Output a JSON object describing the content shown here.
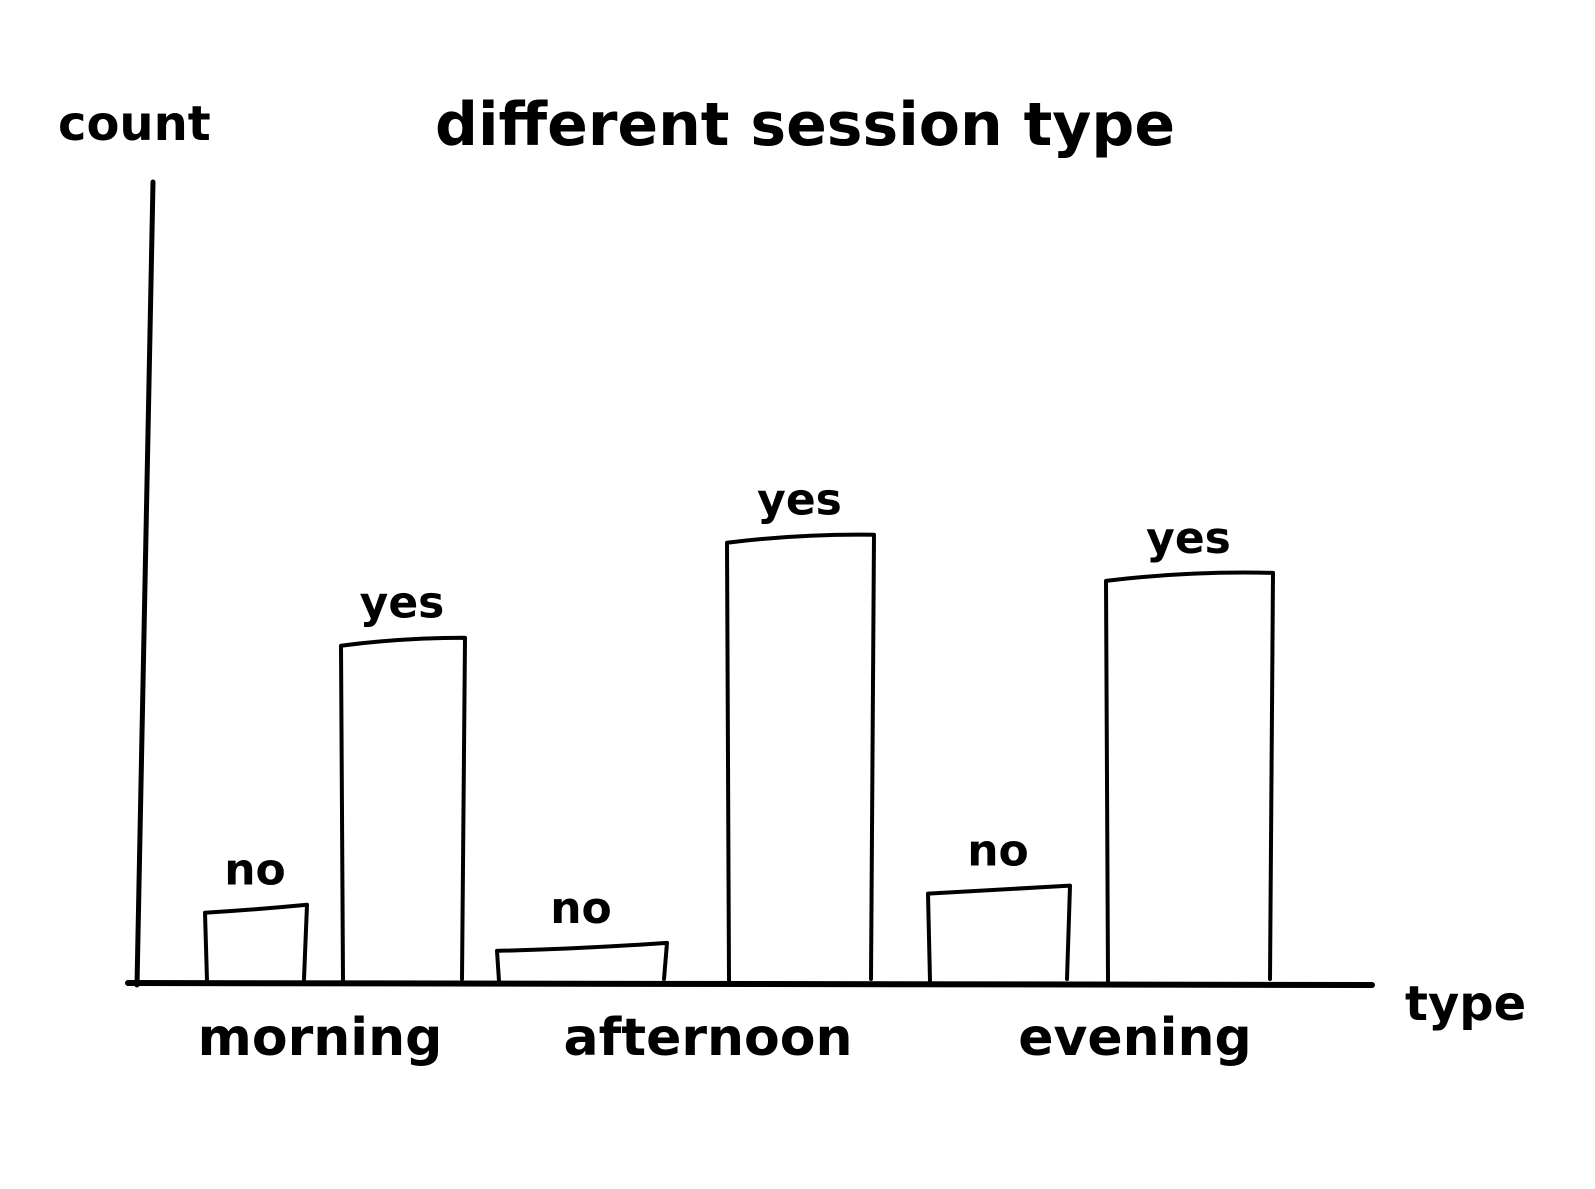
{
  "chart_data": {
    "type": "bar",
    "title": "different session type",
    "xlabel": "type",
    "ylabel": "count",
    "categories": [
      "morning",
      "afternoon",
      "evening"
    ],
    "series": [
      {
        "name": "no",
        "values": [
          2,
          1,
          2.5
        ]
      },
      {
        "name": "yes",
        "values": [
          9,
          11.7,
          10.7
        ]
      }
    ],
    "ylim": [
      0,
      21
    ],
    "grid": false,
    "style": "hand-drawn sketch",
    "colors": {
      "ink": "#000000",
      "background": "#ffffff"
    }
  }
}
